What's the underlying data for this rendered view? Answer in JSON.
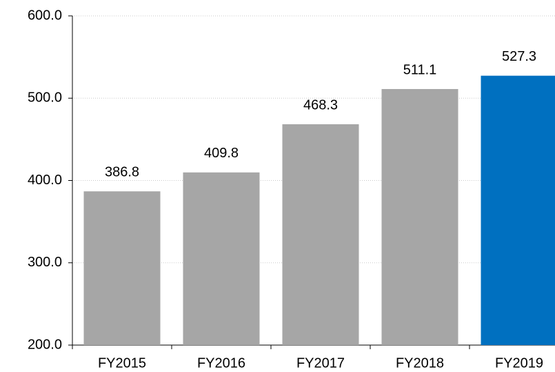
{
  "chart_data": {
    "type": "bar",
    "categories": [
      "FY2015",
      "FY2016",
      "FY2017",
      "FY2018",
      "FY2019"
    ],
    "values": [
      386.8,
      409.8,
      468.3,
      511.1,
      527.3
    ],
    "colors": [
      "#a6a6a6",
      "#a6a6a6",
      "#a6a6a6",
      "#a6a6a6",
      "#0070c0"
    ],
    "ylim": [
      200,
      600
    ],
    "yticks": [
      {
        "value": 200,
        "label": "200.0"
      },
      {
        "value": 300,
        "label": "300.0"
      },
      {
        "value": 400,
        "label": "400.0"
      },
      {
        "value": 500,
        "label": "500.0"
      },
      {
        "value": 600,
        "label": "600.0"
      }
    ],
    "grid": true
  }
}
